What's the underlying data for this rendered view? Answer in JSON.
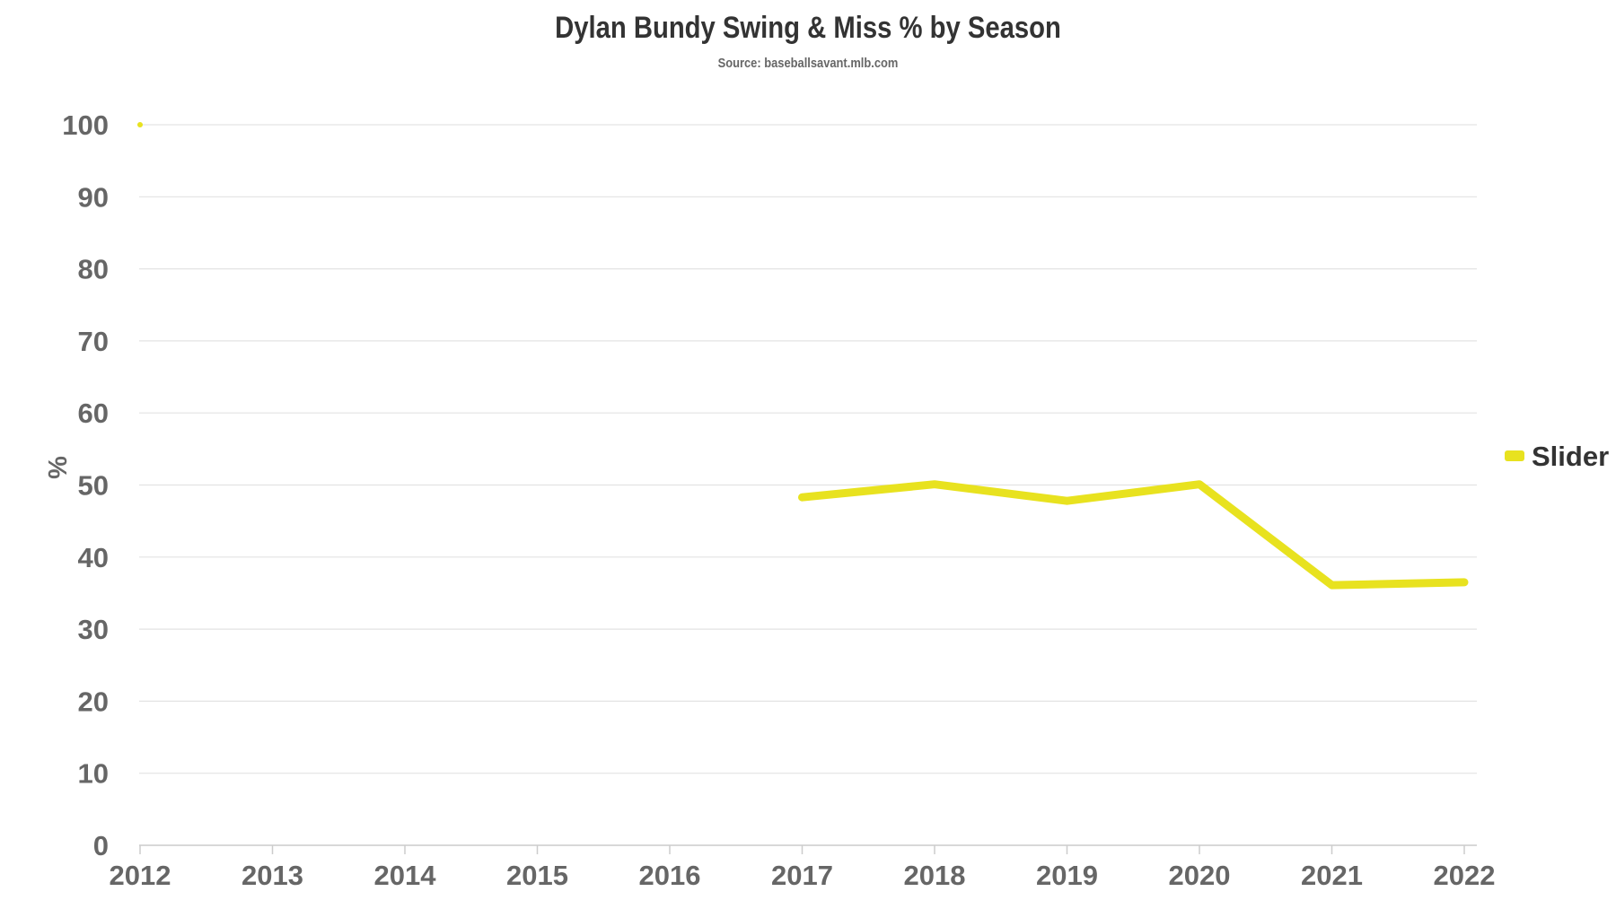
{
  "chart_data": {
    "type": "line",
    "title": "Dylan Bundy Swing & Miss % by Season",
    "subtitle": "Source: baseballsavant.mlb.com",
    "xlabel": "",
    "ylabel": "%",
    "x": [
      "2012",
      "2013",
      "2014",
      "2015",
      "2016",
      "2017",
      "2018",
      "2019",
      "2020",
      "2021",
      "2022"
    ],
    "yticks": [
      0,
      10,
      20,
      30,
      40,
      50,
      60,
      70,
      80,
      90,
      100
    ],
    "ylim": [
      0,
      100
    ],
    "grid": true,
    "legend_position": "right",
    "series": [
      {
        "name": "Slider",
        "color": "#e8e21f",
        "values": [
          100,
          null,
          null,
          null,
          null,
          48.3,
          50.1,
          47.8,
          50.1,
          36.1,
          36.5
        ]
      }
    ]
  }
}
